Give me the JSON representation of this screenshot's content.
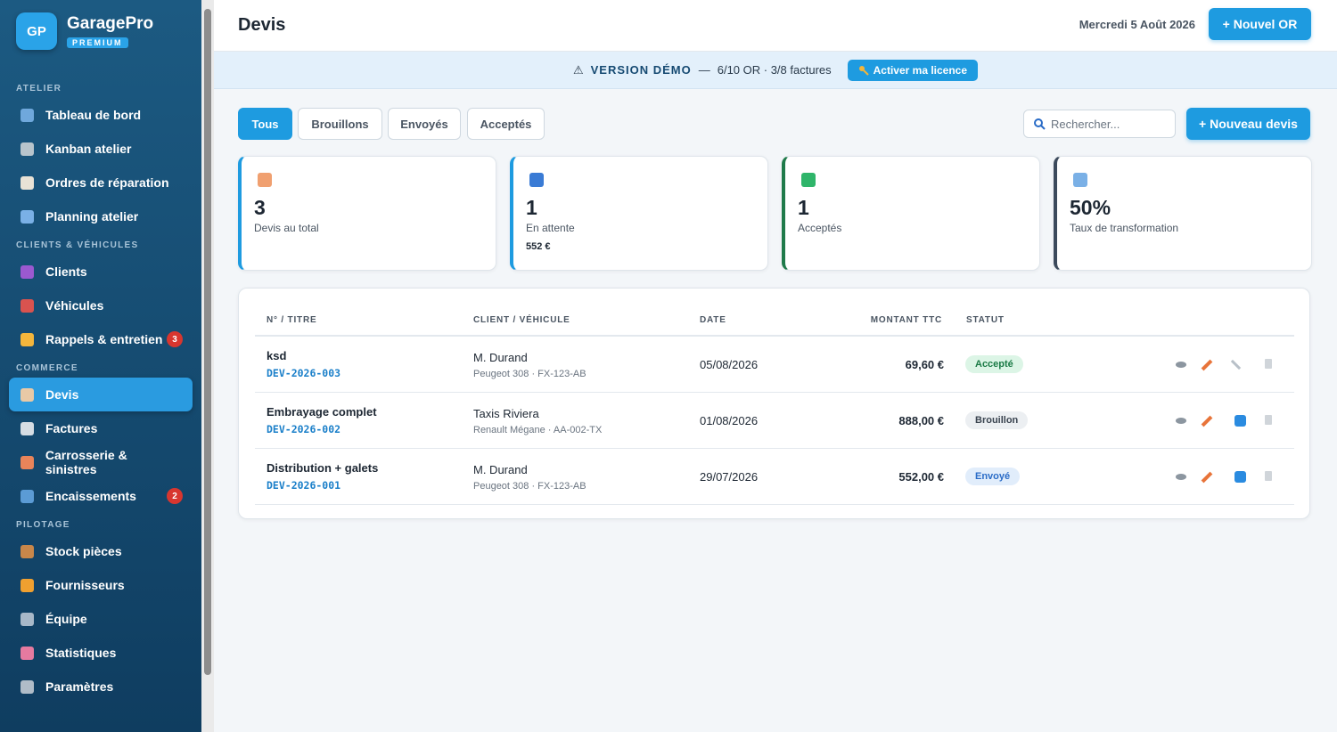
{
  "brand": {
    "logo": "GP",
    "name": "GaragePro",
    "badge": "PREMIUM"
  },
  "nav": [
    {
      "title": "ATELIER",
      "items": [
        {
          "label": "Tableau de bord"
        },
        {
          "label": "Kanban atelier"
        },
        {
          "label": "Ordres de réparation"
        },
        {
          "label": "Planning atelier"
        }
      ]
    },
    {
      "title": "CLIENTS & VÉHICULES",
      "items": [
        {
          "label": "Clients"
        },
        {
          "label": "Véhicules"
        },
        {
          "label": "Rappels & entretien",
          "badge": "3"
        }
      ]
    },
    {
      "title": "COMMERCE",
      "items": [
        {
          "label": "Devis"
        },
        {
          "label": "Factures"
        },
        {
          "label": "Carrosserie & sinistres"
        },
        {
          "label": "Encaissements",
          "badge": "2"
        }
      ]
    },
    {
      "title": "PILOTAGE",
      "items": [
        {
          "label": "Stock pièces"
        },
        {
          "label": "Fournisseurs"
        },
        {
          "label": "Équipe"
        },
        {
          "label": "Statistiques"
        },
        {
          "label": "Paramètres"
        }
      ]
    }
  ],
  "header": {
    "title": "Devis",
    "date": "Mercredi 5 Août 2026",
    "button": "+ Nouvel OR"
  },
  "banner": {
    "icon": "⚠",
    "title": "VERSION DÉMO",
    "dash": "—",
    "usage": "6/10 OR · 3/8 factures",
    "button": "Activer ma licence"
  },
  "tabs": [
    "Tous",
    "Brouillons",
    "Envoyés",
    "Acceptés"
  ],
  "search": {
    "placeholder": "Rechercher..."
  },
  "new_button": "+ Nouveau devis",
  "stats": [
    {
      "value": "3",
      "label": "Devis au total"
    },
    {
      "value": "1",
      "label": "En attente",
      "sub": "552 €"
    },
    {
      "value": "1",
      "label": "Acceptés"
    },
    {
      "value": "50%",
      "label": "Taux de transformation"
    }
  ],
  "table": {
    "headers": [
      "N° / TITRE",
      "CLIENT / VÉHICULE",
      "DATE",
      "MONTANT TTC",
      "STATUT"
    ],
    "rows": [
      {
        "title": "ksd",
        "ref": "DEV-2026-003",
        "client": "M. Durand",
        "vehicle": "Peugeot 308 · FX-123-AB",
        "date": "05/08/2026",
        "amount": "69,60 €",
        "status": "Accepté"
      },
      {
        "title": "Embrayage complet",
        "ref": "DEV-2026-002",
        "client": "Taxis Riviera",
        "vehicle": "Renault Mégane · AA-002-TX",
        "date": "01/08/2026",
        "amount": "888,00 €",
        "status": "Brouillon"
      },
      {
        "title": "Distribution + galets",
        "ref": "DEV-2026-001",
        "client": "M. Durand",
        "vehicle": "Peugeot 308 · FX-123-AB",
        "date": "29/07/2026",
        "amount": "552,00 €",
        "status": "Envoyé"
      }
    ]
  }
}
